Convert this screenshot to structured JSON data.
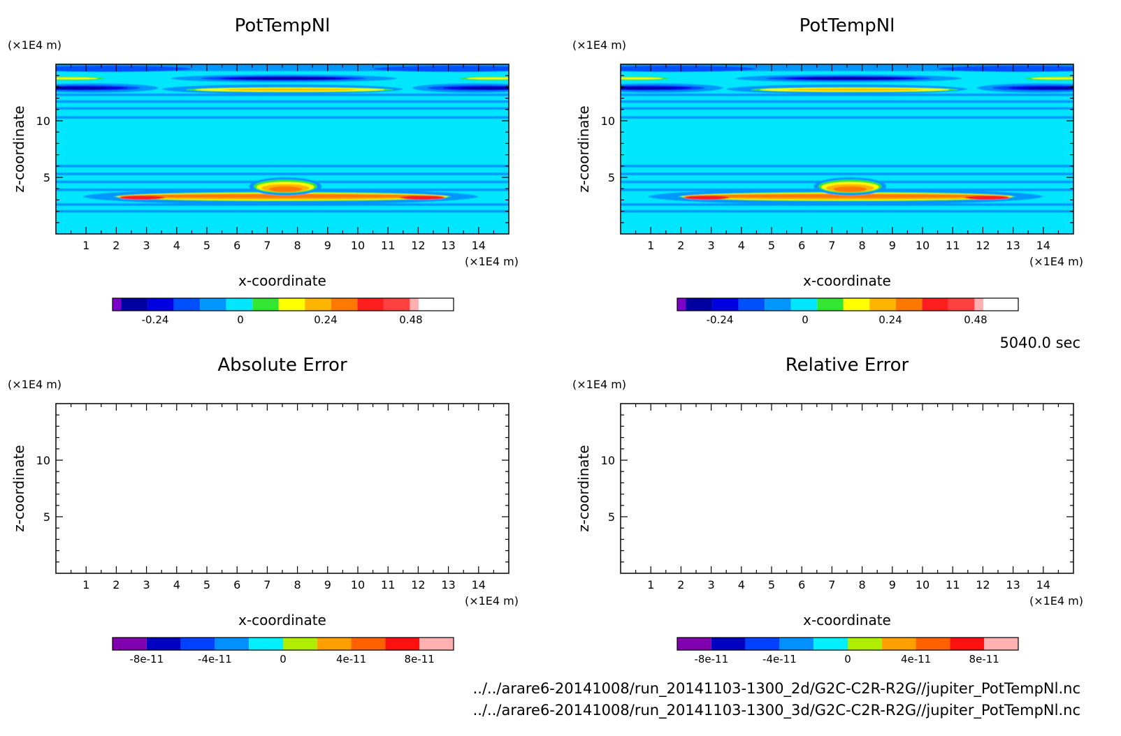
{
  "figure": {
    "time_label": "5040.0 sec",
    "file_paths": [
      "../../arare6-20141008/run_20141103-1300_2d/G2C-C2R-R2G//jupiter_PotTempNl.nc",
      "../../arare6-20141008/run_20141103-1300_3d/G2C-C2R-R2G//jupiter_PotTempNl.nc"
    ]
  },
  "colors": {
    "field_scale": [
      "#7b00c8",
      "#0000a0",
      "#0000e0",
      "#0050ff",
      "#0096ff",
      "#00e6ff",
      "#32e632",
      "#ffff00",
      "#ffb400",
      "#ff7800",
      "#ff1e1e",
      "#ff4040",
      "#ffb0b0"
    ],
    "error_scale": [
      "#8000b0",
      "#0000c0",
      "#0040ff",
      "#0090ff",
      "#00f0ff",
      "#b0ee00",
      "#ffa000",
      "#ff6000",
      "#ff1010",
      "#ffb0b0"
    ],
    "background_field": "#00e6ff"
  },
  "chart_data": [
    {
      "type": "heatmap",
      "title": "PotTempNl",
      "xlabel": "x-coordinate",
      "ylabel": "z-coordinate",
      "x_unit": "(×1E4 m)",
      "y_unit": "(×1E4 m)",
      "xlim": [
        0,
        15
      ],
      "ylim": [
        0,
        15
      ],
      "x_ticks": [
        1,
        2,
        3,
        4,
        5,
        6,
        7,
        8,
        9,
        10,
        11,
        12,
        13,
        14
      ],
      "y_ticks": [
        5,
        10
      ],
      "colorbar": {
        "type": "field",
        "ticks": [
          "-0.24",
          "0",
          "0.24",
          "0.48"
        ],
        "tick_values": [
          -0.24,
          0,
          0.24,
          0.48
        ],
        "range": [
          -0.36,
          0.6
        ]
      },
      "features": [
        {
          "kind": "perturbation-band",
          "z": 3.3,
          "x_range": [
            2,
            13
          ],
          "max": 0.48
        },
        {
          "kind": "perturbation-dome",
          "x": 7.6,
          "z": 4.3,
          "max": 0.36
        },
        {
          "kind": "positive-band",
          "z": 12.8,
          "x_range": [
            4.5,
            11
          ],
          "max": 0.24
        },
        {
          "kind": "negative-band",
          "z": 12.9,
          "x_range": [
            0,
            2.5
          ],
          "min": -0.24
        },
        {
          "kind": "negative-band",
          "z": 12.9,
          "x_range": [
            12.5,
            15
          ],
          "min": -0.24
        },
        {
          "kind": "negative-band",
          "z": 13.7,
          "x_range": [
            5,
            10
          ],
          "min": -0.24
        }
      ]
    },
    {
      "type": "heatmap",
      "title": "PotTempNl",
      "xlabel": "x-coordinate",
      "ylabel": "z-coordinate",
      "x_unit": "(×1E4 m)",
      "y_unit": "(×1E4 m)",
      "xlim": [
        0,
        15
      ],
      "ylim": [
        0,
        15
      ],
      "x_ticks": [
        1,
        2,
        3,
        4,
        5,
        6,
        7,
        8,
        9,
        10,
        11,
        12,
        13,
        14
      ],
      "y_ticks": [
        5,
        10
      ],
      "colorbar": {
        "type": "field",
        "ticks": [
          "-0.24",
          "0",
          "0.24",
          "0.48"
        ],
        "tick_values": [
          -0.24,
          0,
          0.24,
          0.48
        ],
        "range": [
          -0.36,
          0.6
        ]
      },
      "features": [
        {
          "kind": "perturbation-band",
          "z": 3.3,
          "x_range": [
            2,
            13
          ],
          "max": 0.48
        },
        {
          "kind": "perturbation-dome",
          "x": 7.6,
          "z": 4.3,
          "max": 0.36
        },
        {
          "kind": "positive-band",
          "z": 12.8,
          "x_range": [
            4.5,
            11
          ],
          "max": 0.24
        },
        {
          "kind": "negative-band",
          "z": 12.9,
          "x_range": [
            0,
            2.5
          ],
          "min": -0.24
        },
        {
          "kind": "negative-band",
          "z": 12.9,
          "x_range": [
            12.5,
            15
          ],
          "min": -0.24
        },
        {
          "kind": "negative-band",
          "z": 13.7,
          "x_range": [
            5,
            10
          ],
          "min": -0.24
        }
      ]
    },
    {
      "type": "heatmap",
      "title": "Absolute Error",
      "xlabel": "x-coordinate",
      "ylabel": "z-coordinate",
      "x_unit": "(×1E4 m)",
      "y_unit": "(×1E4 m)",
      "xlim": [
        0,
        15
      ],
      "ylim": [
        0,
        15
      ],
      "x_ticks": [
        1,
        2,
        3,
        4,
        5,
        6,
        7,
        8,
        9,
        10,
        11,
        12,
        13,
        14
      ],
      "y_ticks": [
        5,
        10
      ],
      "colorbar": {
        "type": "error",
        "ticks": [
          "-8e-11",
          "-4e-11",
          "0",
          "4e-11",
          "8e-11"
        ],
        "tick_values": [
          -8e-11,
          -4e-11,
          0,
          4e-11,
          8e-11
        ],
        "range": [
          -1e-10,
          1e-10
        ]
      },
      "features": []
    },
    {
      "type": "heatmap",
      "title": "Relative Error",
      "xlabel": "x-coordinate",
      "ylabel": "z-coordinate",
      "x_unit": "(×1E4 m)",
      "y_unit": "(×1E4 m)",
      "xlim": [
        0,
        15
      ],
      "ylim": [
        0,
        15
      ],
      "x_ticks": [
        1,
        2,
        3,
        4,
        5,
        6,
        7,
        8,
        9,
        10,
        11,
        12,
        13,
        14
      ],
      "y_ticks": [
        5,
        10
      ],
      "colorbar": {
        "type": "error",
        "ticks": [
          "-8e-11",
          "-4e-11",
          "0",
          "4e-11",
          "8e-11"
        ],
        "tick_values": [
          -8e-11,
          -4e-11,
          0,
          4e-11,
          8e-11
        ],
        "range": [
          -1e-10,
          1e-10
        ]
      },
      "features": []
    }
  ]
}
